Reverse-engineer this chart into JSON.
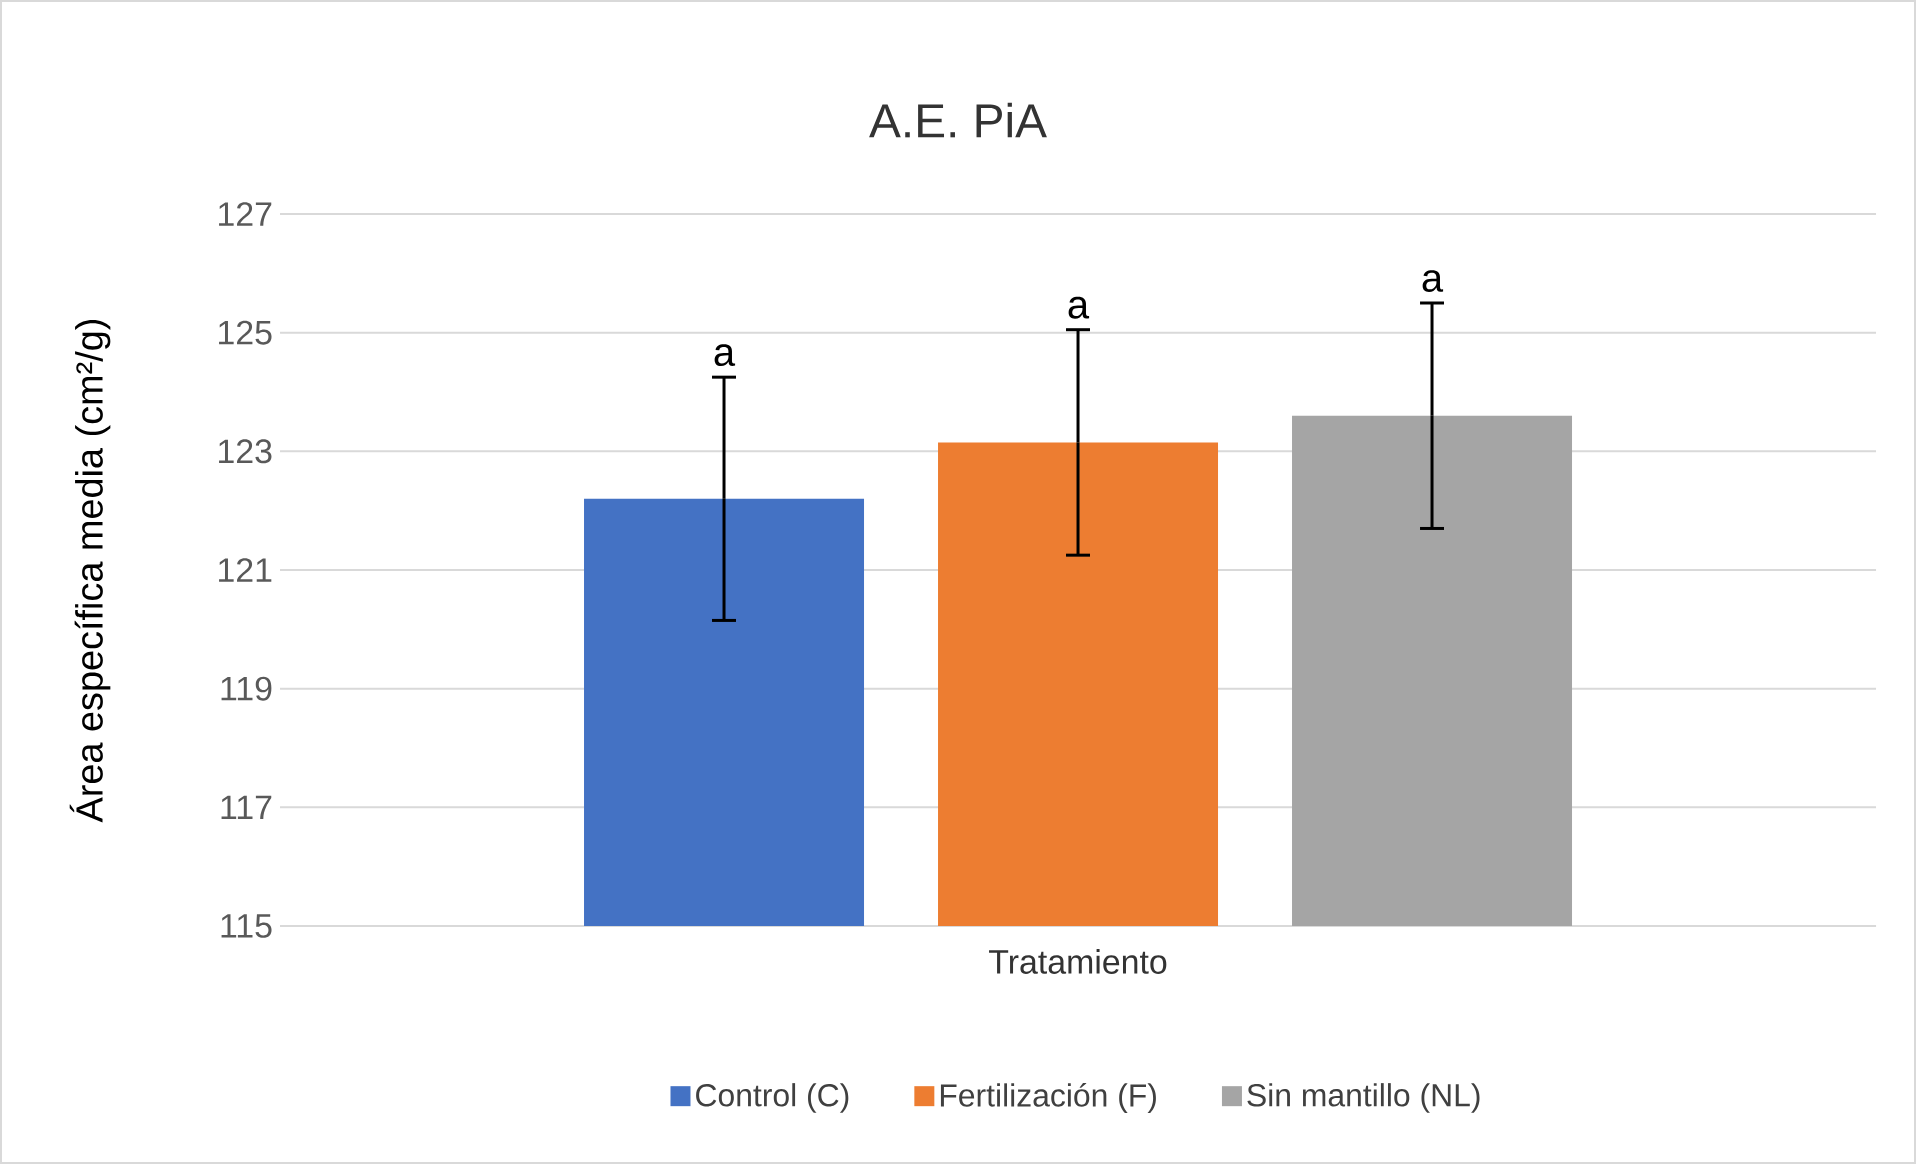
{
  "chart_data": {
    "type": "bar",
    "title": "A.E. PiA",
    "ylabel": "Área específica media (cm²/g)",
    "categories": [
      "Tratamiento"
    ],
    "series": [
      {
        "name": "Control (C)",
        "color": "#4472c4",
        "values": [
          122.2
        ],
        "errors": [
          2.05
        ]
      },
      {
        "name": "Fertilización (F)",
        "color": "#ed7d31",
        "values": [
          123.15
        ],
        "errors": [
          1.9
        ]
      },
      {
        "name": "Sin mantillo (NL)",
        "color": "#a5a5a5",
        "values": [
          123.6
        ],
        "errors": [
          1.9
        ]
      }
    ],
    "ylim": [
      115,
      127
    ],
    "yticks": [
      115,
      117,
      119,
      121,
      123,
      125,
      127
    ],
    "grid": "y",
    "legend": "bottom",
    "annotations": [
      "a",
      "a",
      "a"
    ]
  }
}
